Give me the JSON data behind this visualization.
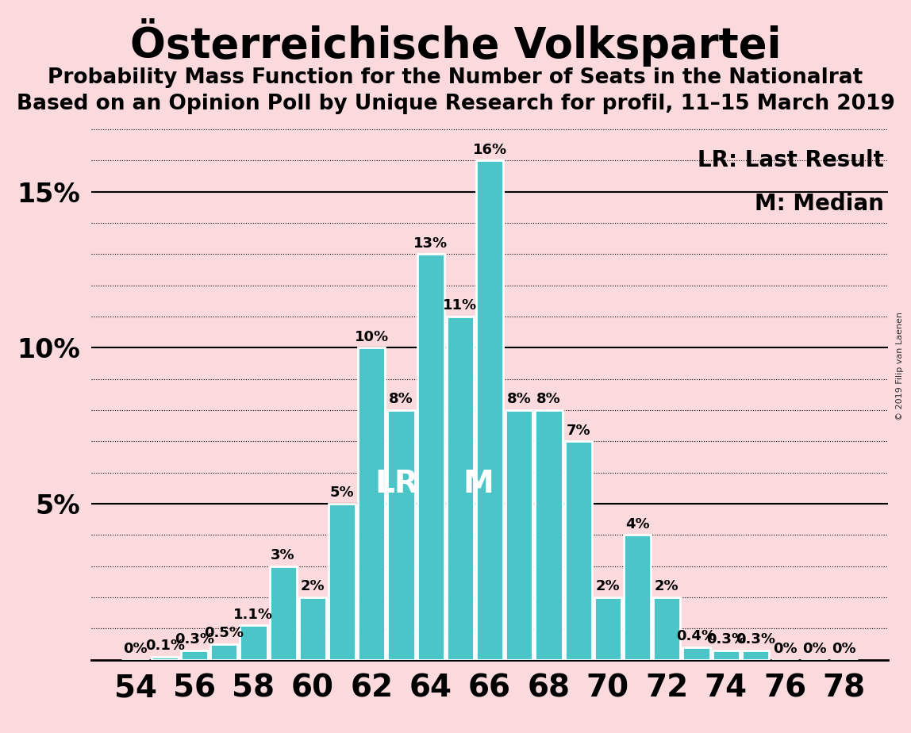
{
  "title": "Österreichische Volkspartei",
  "subtitle1": "Probability Mass Function for the Number of Seats in the Nationalrat",
  "subtitle2": "Based on an Opinion Poll by Unique Research for profil, 11–15 March 2019",
  "copyright": "© 2019 Filip van Laenen",
  "seats": [
    54,
    55,
    56,
    57,
    58,
    59,
    60,
    61,
    62,
    63,
    64,
    65,
    66,
    67,
    68,
    69,
    70,
    71,
    72,
    73,
    74,
    75,
    76,
    77,
    78
  ],
  "probabilities": [
    0.0,
    0.1,
    0.3,
    0.5,
    1.1,
    3.0,
    2.0,
    5.0,
    10.0,
    8.0,
    13.0,
    11.0,
    16.0,
    8.0,
    8.0,
    7.0,
    2.0,
    4.0,
    2.0,
    0.4,
    0.3,
    0.3,
    0.0,
    0.0,
    0.0
  ],
  "bar_color": "#4cc5c8",
  "background_color": "#fadadd",
  "bar_edge_color": "white",
  "last_result_seat": 62,
  "median_seat": 65,
  "lr_label": "LR",
  "m_label": "M",
  "lr_legend": "LR: Last Result",
  "m_legend": "M: Median",
  "bar_label_fontsize": 13,
  "legend_fontsize": 20,
  "xlim": [
    52.5,
    79.5
  ],
  "ylim": [
    0,
    17.5
  ],
  "ytick_solid": [
    5,
    10,
    15
  ],
  "ytick_dotted_spacing": 1,
  "xticks": [
    54,
    56,
    58,
    60,
    62,
    64,
    66,
    68,
    70,
    72,
    74,
    76,
    78
  ],
  "xlabel_fontsize": 28,
  "ylabel_fontsize": 24,
  "title_fontsize": 38,
  "subtitle_fontsize": 19
}
